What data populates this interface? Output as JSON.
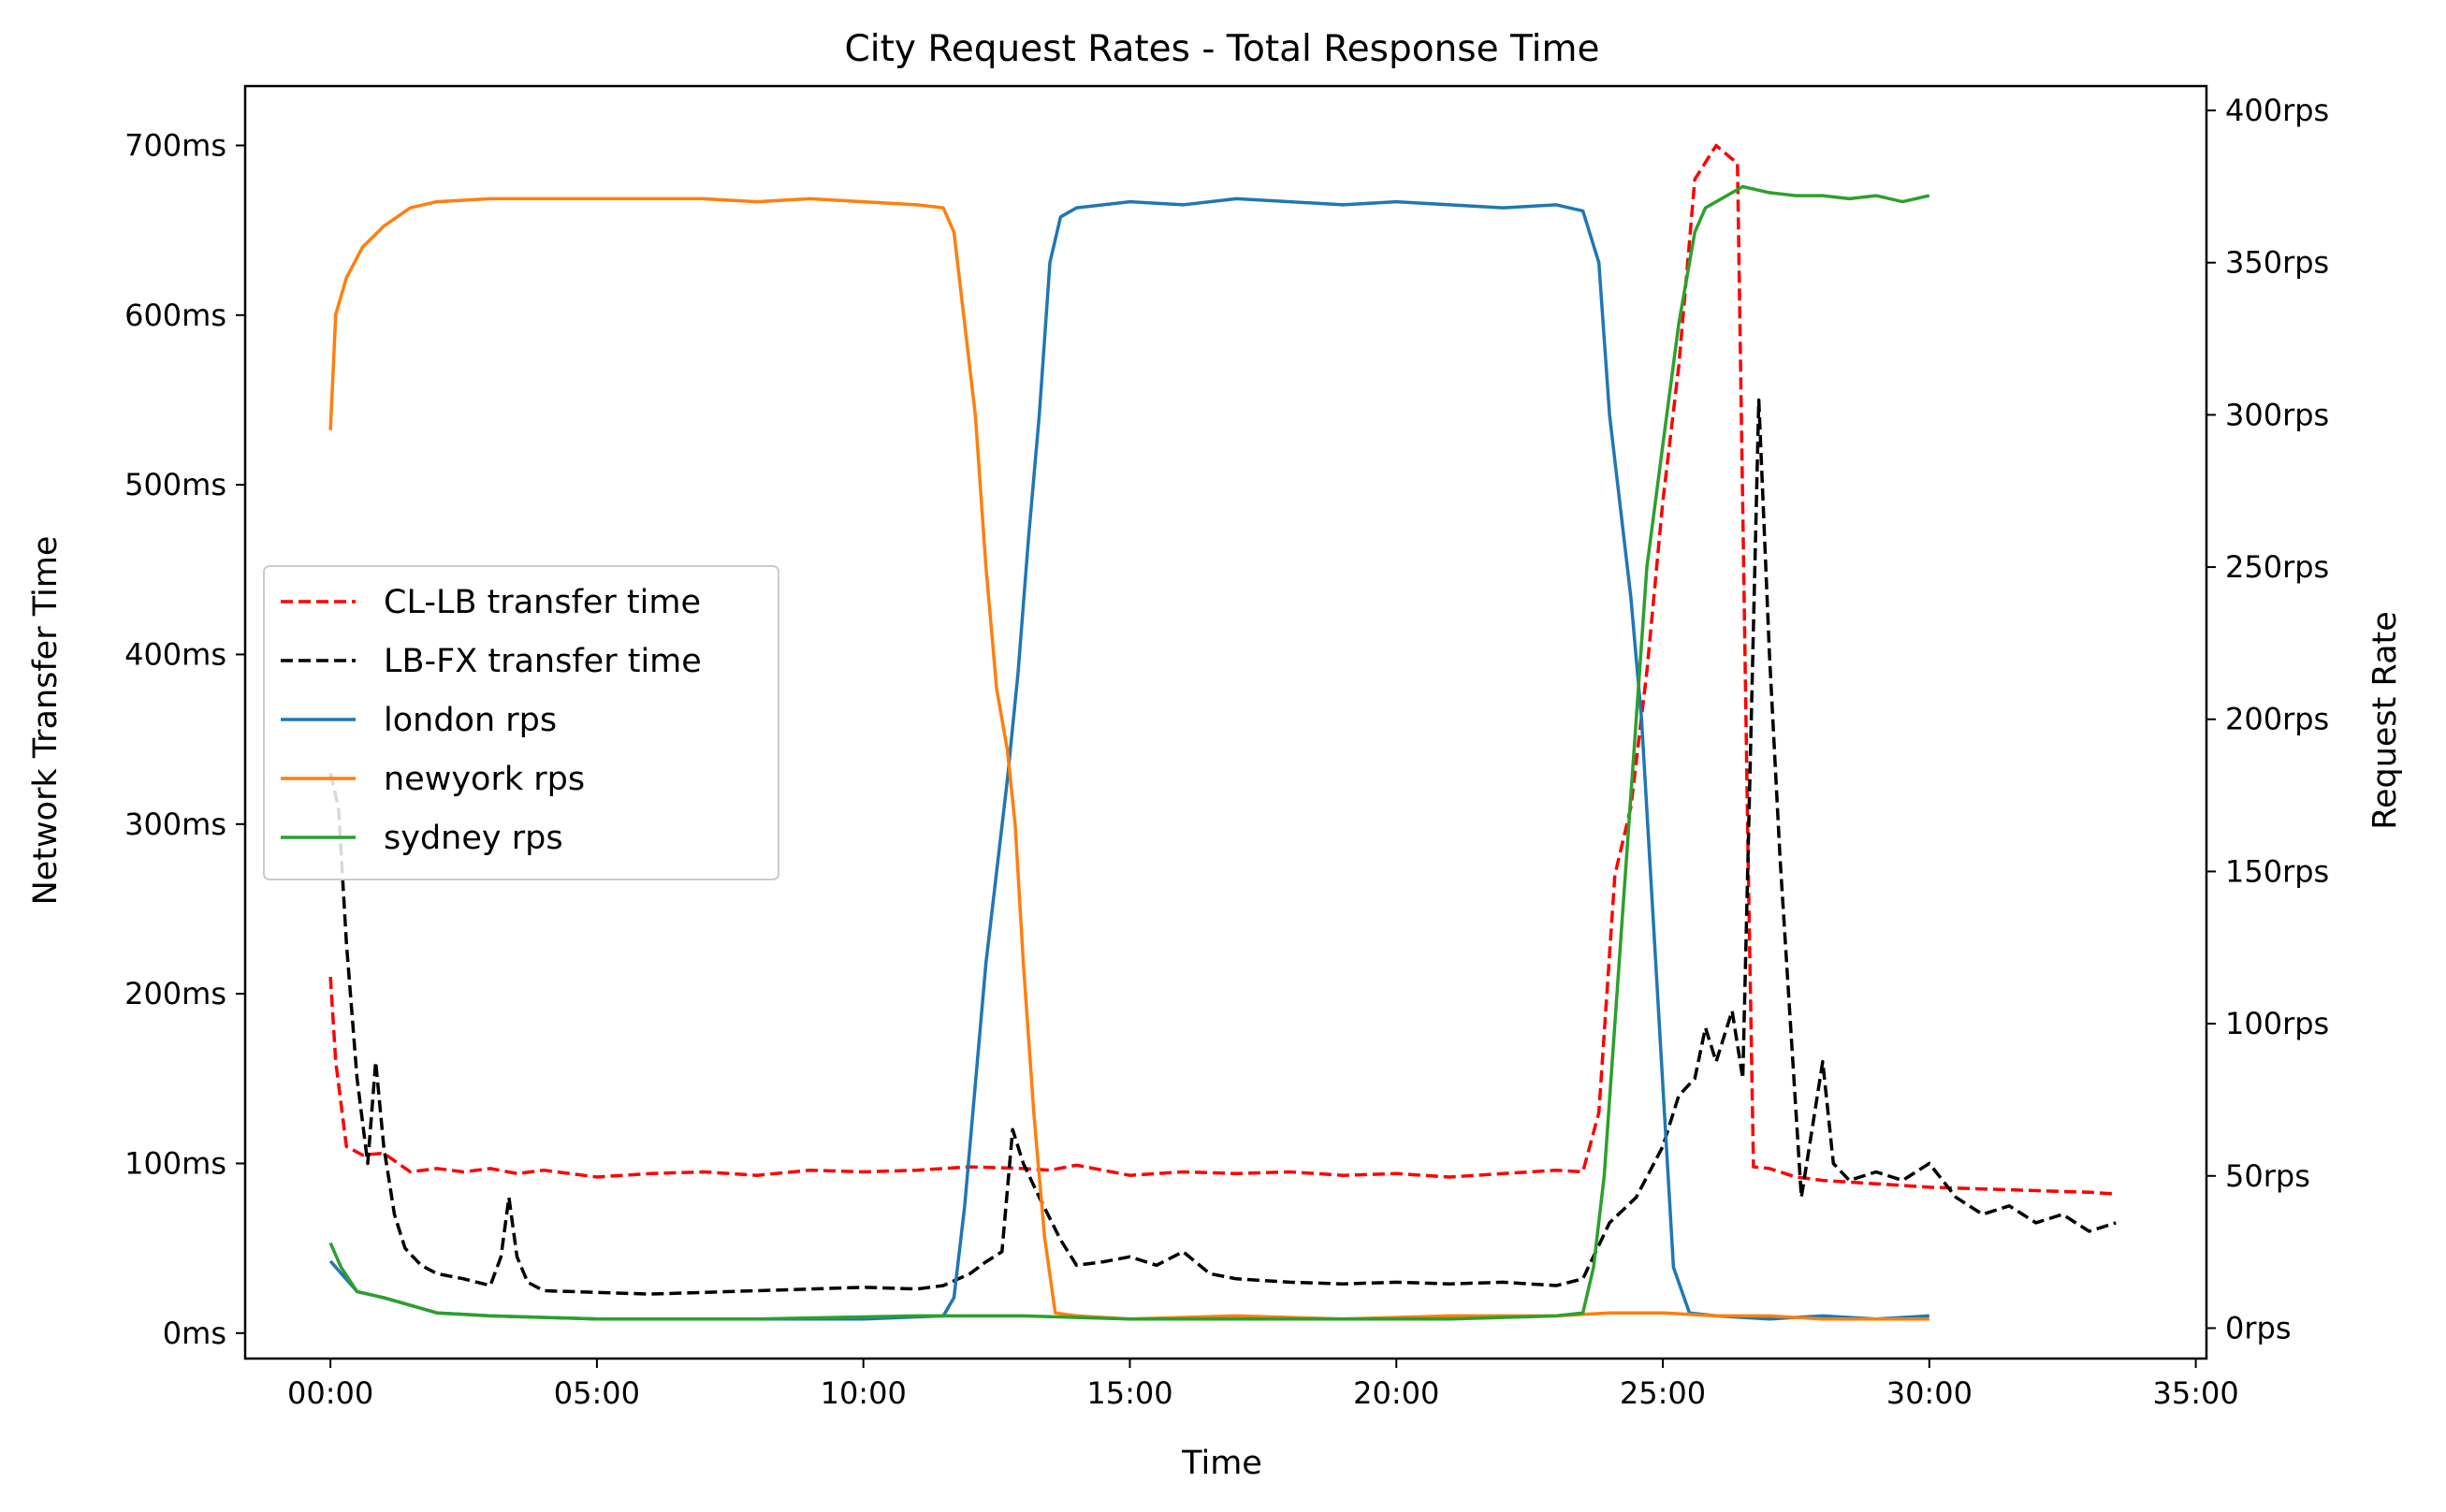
{
  "chart_data": {
    "type": "line",
    "title": "City Request Rates - Total Response Time",
    "xlabel": "Time",
    "ylabel_left": "Network Transfer Time",
    "ylabel_right": "Request Rate",
    "x_unit": "minutes",
    "x_ticks": [
      {
        "value": 0,
        "label": "00:00"
      },
      {
        "value": 5,
        "label": "05:00"
      },
      {
        "value": 10,
        "label": "10:00"
      },
      {
        "value": 15,
        "label": "15:00"
      },
      {
        "value": 20,
        "label": "20:00"
      },
      {
        "value": 25,
        "label": "25:00"
      },
      {
        "value": 30,
        "label": "30:00"
      },
      {
        "value": 35,
        "label": "35:00"
      }
    ],
    "y_left_ticks": [
      {
        "value": 0,
        "label": "0ms"
      },
      {
        "value": 100,
        "label": "100ms"
      },
      {
        "value": 200,
        "label": "200ms"
      },
      {
        "value": 300,
        "label": "300ms"
      },
      {
        "value": 400,
        "label": "400ms"
      },
      {
        "value": 500,
        "label": "500ms"
      },
      {
        "value": 600,
        "label": "600ms"
      },
      {
        "value": 700,
        "label": "700ms"
      }
    ],
    "y_right_ticks": [
      {
        "value": 0,
        "label": "0rps"
      },
      {
        "value": 50,
        "label": "50rps"
      },
      {
        "value": 100,
        "label": "100rps"
      },
      {
        "value": 150,
        "label": "150rps"
      },
      {
        "value": 200,
        "label": "200rps"
      },
      {
        "value": 250,
        "label": "250rps"
      },
      {
        "value": 300,
        "label": "300rps"
      },
      {
        "value": 350,
        "label": "350rps"
      },
      {
        "value": 400,
        "label": "400rps"
      }
    ],
    "xlim": [
      -1.6,
      35.2
    ],
    "ylim_left": [
      -15,
      735
    ],
    "ylim_right": [
      -10,
      408
    ],
    "grid": false,
    "legend_position": "center-left",
    "series": [
      {
        "name": "CL-LB transfer time",
        "axis": "left",
        "color": "#ff0000",
        "dash": true,
        "points": [
          [
            0,
            210
          ],
          [
            0.1,
            160
          ],
          [
            0.3,
            110
          ],
          [
            0.6,
            105
          ],
          [
            1.0,
            106
          ],
          [
            1.5,
            95
          ],
          [
            2.0,
            97
          ],
          [
            2.5,
            95
          ],
          [
            3.0,
            97
          ],
          [
            3.5,
            94
          ],
          [
            4.0,
            96
          ],
          [
            5.0,
            92
          ],
          [
            6.0,
            94
          ],
          [
            7.0,
            95
          ],
          [
            8.0,
            93
          ],
          [
            9.0,
            96
          ],
          [
            10.0,
            95
          ],
          [
            11.0,
            96
          ],
          [
            12.0,
            98
          ],
          [
            13.0,
            97
          ],
          [
            13.5,
            96
          ],
          [
            14.0,
            99
          ],
          [
            15.0,
            93
          ],
          [
            16.0,
            95
          ],
          [
            17.0,
            94
          ],
          [
            18.0,
            95
          ],
          [
            19.0,
            93
          ],
          [
            20.0,
            94
          ],
          [
            21.0,
            92
          ],
          [
            22.0,
            94
          ],
          [
            23.0,
            96
          ],
          [
            23.5,
            95
          ],
          [
            23.8,
            130
          ],
          [
            24.1,
            270
          ],
          [
            24.4,
            310
          ],
          [
            24.7,
            390
          ],
          [
            25.0,
            490
          ],
          [
            25.3,
            570
          ],
          [
            25.6,
            680
          ],
          [
            25.8,
            690
          ],
          [
            26.0,
            700
          ],
          [
            26.3,
            692
          ],
          [
            26.4,
            690
          ],
          [
            26.6,
            280
          ],
          [
            26.7,
            98
          ],
          [
            27.0,
            97
          ],
          [
            27.5,
            92
          ],
          [
            28.0,
            90
          ],
          [
            29.0,
            88
          ],
          [
            30.0,
            86
          ],
          [
            31.0,
            85
          ],
          [
            32.0,
            84
          ],
          [
            33.0,
            83
          ],
          [
            33.5,
            82
          ]
        ]
      },
      {
        "name": "LB-FX transfer time",
        "axis": "left",
        "color": "#000000",
        "dash": true,
        "points": [
          [
            0,
            330
          ],
          [
            0.15,
            310
          ],
          [
            0.3,
            230
          ],
          [
            0.5,
            150
          ],
          [
            0.7,
            100
          ],
          [
            0.85,
            160
          ],
          [
            1.0,
            110
          ],
          [
            1.2,
            70
          ],
          [
            1.4,
            50
          ],
          [
            1.7,
            40
          ],
          [
            2.0,
            35
          ],
          [
            2.5,
            32
          ],
          [
            3.0,
            28
          ],
          [
            3.2,
            45
          ],
          [
            3.35,
            80
          ],
          [
            3.5,
            45
          ],
          [
            3.7,
            30
          ],
          [
            4.0,
            25
          ],
          [
            5.0,
            24
          ],
          [
            6.0,
            23
          ],
          [
            7.0,
            24
          ],
          [
            8.0,
            25
          ],
          [
            9.0,
            26
          ],
          [
            10.0,
            27
          ],
          [
            11.0,
            26
          ],
          [
            11.5,
            28
          ],
          [
            12.0,
            35
          ],
          [
            12.3,
            42
          ],
          [
            12.6,
            48
          ],
          [
            12.8,
            120
          ],
          [
            13.0,
            100
          ],
          [
            13.3,
            80
          ],
          [
            13.7,
            55
          ],
          [
            14.0,
            40
          ],
          [
            14.5,
            42
          ],
          [
            15.0,
            45
          ],
          [
            15.5,
            40
          ],
          [
            16.0,
            48
          ],
          [
            16.5,
            35
          ],
          [
            17.0,
            32
          ],
          [
            18.0,
            30
          ],
          [
            19.0,
            29
          ],
          [
            20.0,
            30
          ],
          [
            21.0,
            29
          ],
          [
            22.0,
            30
          ],
          [
            23.0,
            28
          ],
          [
            23.5,
            32
          ],
          [
            24.0,
            65
          ],
          [
            24.5,
            80
          ],
          [
            25.0,
            110
          ],
          [
            25.3,
            140
          ],
          [
            25.6,
            150
          ],
          [
            25.8,
            180
          ],
          [
            26.0,
            160
          ],
          [
            26.3,
            190
          ],
          [
            26.5,
            150
          ],
          [
            26.8,
            550
          ],
          [
            27.0,
            400
          ],
          [
            27.2,
            280
          ],
          [
            27.4,
            180
          ],
          [
            27.6,
            80
          ],
          [
            27.8,
            120
          ],
          [
            28.0,
            160
          ],
          [
            28.2,
            100
          ],
          [
            28.5,
            90
          ],
          [
            29.0,
            95
          ],
          [
            29.5,
            90
          ],
          [
            30.0,
            100
          ],
          [
            30.5,
            80
          ],
          [
            31.0,
            70
          ],
          [
            31.5,
            75
          ],
          [
            32.0,
            65
          ],
          [
            32.5,
            70
          ],
          [
            33.0,
            60
          ],
          [
            33.5,
            65
          ]
        ]
      },
      {
        "name": "london rps",
        "axis": "right",
        "color": "#1f77b4",
        "dash": false,
        "points": [
          [
            0,
            22
          ],
          [
            0.2,
            18
          ],
          [
            0.5,
            12
          ],
          [
            1.0,
            10
          ],
          [
            2.0,
            5
          ],
          [
            3.0,
            4
          ],
          [
            5.0,
            3
          ],
          [
            8.0,
            3
          ],
          [
            10.0,
            3
          ],
          [
            11.5,
            4
          ],
          [
            11.7,
            10
          ],
          [
            11.9,
            40
          ],
          [
            12.1,
            80
          ],
          [
            12.3,
            120
          ],
          [
            12.5,
            150
          ],
          [
            12.7,
            180
          ],
          [
            12.9,
            215
          ],
          [
            13.1,
            260
          ],
          [
            13.3,
            300
          ],
          [
            13.5,
            350
          ],
          [
            13.7,
            365
          ],
          [
            14.0,
            368
          ],
          [
            15.0,
            370
          ],
          [
            16.0,
            369
          ],
          [
            17.0,
            371
          ],
          [
            18.0,
            370
          ],
          [
            19.0,
            369
          ],
          [
            20.0,
            370
          ],
          [
            21.0,
            369
          ],
          [
            22.0,
            368
          ],
          [
            23.0,
            369
          ],
          [
            23.5,
            367
          ],
          [
            23.8,
            350
          ],
          [
            24.0,
            300
          ],
          [
            24.2,
            270
          ],
          [
            24.4,
            240
          ],
          [
            24.6,
            200
          ],
          [
            24.8,
            140
          ],
          [
            25.0,
            80
          ],
          [
            25.2,
            20
          ],
          [
            25.5,
            5
          ],
          [
            26.0,
            4
          ],
          [
            27.0,
            3
          ],
          [
            28.0,
            4
          ],
          [
            29.0,
            3
          ],
          [
            30.0,
            4
          ]
        ]
      },
      {
        "name": "newyork rps",
        "axis": "right",
        "color": "#ff7f0e",
        "dash": false,
        "points": [
          [
            0,
            295
          ],
          [
            0.1,
            333
          ],
          [
            0.3,
            345
          ],
          [
            0.6,
            355
          ],
          [
            1.0,
            362
          ],
          [
            1.5,
            368
          ],
          [
            2.0,
            370
          ],
          [
            3.0,
            371
          ],
          [
            4.0,
            371
          ],
          [
            5.0,
            371
          ],
          [
            6.0,
            371
          ],
          [
            7.0,
            371
          ],
          [
            8.0,
            370
          ],
          [
            9.0,
            371
          ],
          [
            10.0,
            370
          ],
          [
            11.0,
            369
          ],
          [
            11.5,
            368
          ],
          [
            11.7,
            360
          ],
          [
            11.9,
            330
          ],
          [
            12.1,
            300
          ],
          [
            12.3,
            250
          ],
          [
            12.5,
            210
          ],
          [
            12.7,
            190
          ],
          [
            12.85,
            165
          ],
          [
            13.0,
            120
          ],
          [
            13.2,
            70
          ],
          [
            13.4,
            30
          ],
          [
            13.6,
            5
          ],
          [
            14.0,
            4
          ],
          [
            15.0,
            3
          ],
          [
            17.0,
            4
          ],
          [
            19.0,
            3
          ],
          [
            21.0,
            4
          ],
          [
            23.0,
            4
          ],
          [
            24.0,
            5
          ],
          [
            25.0,
            5
          ],
          [
            26.0,
            4
          ],
          [
            27.0,
            4
          ],
          [
            28.0,
            3
          ],
          [
            29.0,
            3
          ],
          [
            30.0,
            3
          ]
        ]
      },
      {
        "name": "sydney rps",
        "axis": "right",
        "color": "#2ca02c",
        "dash": false,
        "points": [
          [
            0,
            28
          ],
          [
            0.2,
            20
          ],
          [
            0.5,
            12
          ],
          [
            1.0,
            10
          ],
          [
            2.0,
            5
          ],
          [
            3.0,
            4
          ],
          [
            5.0,
            3
          ],
          [
            8.0,
            3
          ],
          [
            11.0,
            4
          ],
          [
            13.0,
            4
          ],
          [
            15.0,
            3
          ],
          [
            17.0,
            3
          ],
          [
            19.0,
            3
          ],
          [
            21.0,
            3
          ],
          [
            23.0,
            4
          ],
          [
            23.5,
            5
          ],
          [
            23.7,
            20
          ],
          [
            23.9,
            50
          ],
          [
            24.1,
            100
          ],
          [
            24.3,
            150
          ],
          [
            24.5,
            200
          ],
          [
            24.7,
            250
          ],
          [
            25.0,
            290
          ],
          [
            25.3,
            330
          ],
          [
            25.6,
            360
          ],
          [
            25.8,
            368
          ],
          [
            26.0,
            370
          ],
          [
            26.5,
            375
          ],
          [
            27.0,
            373
          ],
          [
            27.5,
            372
          ],
          [
            28.0,
            372
          ],
          [
            28.5,
            371
          ],
          [
            29.0,
            372
          ],
          [
            29.5,
            370
          ],
          [
            30.0,
            372
          ]
        ]
      }
    ]
  }
}
